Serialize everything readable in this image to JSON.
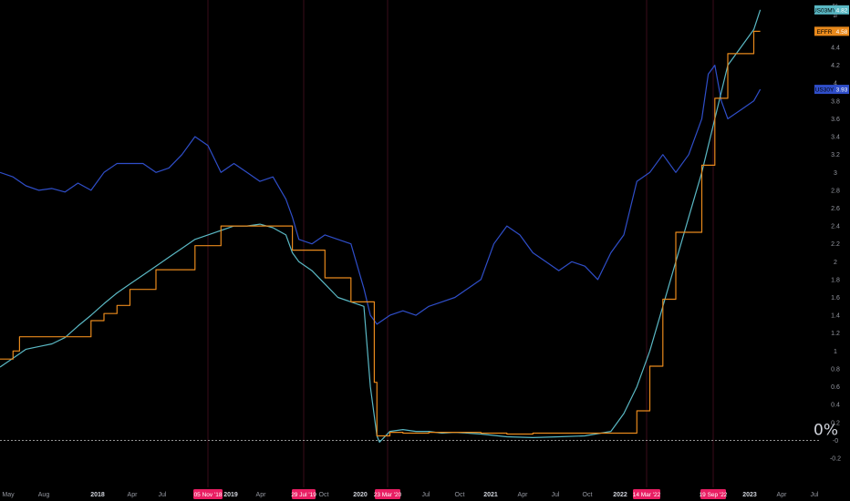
{
  "chart_data": {
    "type": "line",
    "ylabel": "%",
    "ylim": [
      -0.2,
      4.8
    ],
    "y_ticks": [
      "4.4",
      "4.2",
      "4",
      "3.8",
      "3.6",
      "3.4",
      "3.2",
      "3",
      "2.8",
      "2.6",
      "2.4",
      "2.2",
      "2",
      "1.8",
      "1.6",
      "1.4",
      "1.2",
      "1",
      "0.8",
      "0.6",
      "0.4",
      "0.2",
      "-0",
      "-0.2"
    ],
    "y_axis_top_symbol": "⇵",
    "x_ticks": [
      {
        "label": "May",
        "bold": false
      },
      {
        "label": "Aug",
        "bold": false
      },
      {
        "label": "2018",
        "bold": true
      },
      {
        "label": "Apr",
        "bold": false
      },
      {
        "label": "Jul",
        "bold": false
      },
      {
        "label": "O",
        "bold": false
      },
      {
        "label": "2019",
        "bold": true
      },
      {
        "label": "Apr",
        "bold": false
      },
      {
        "label": "Oct",
        "bold": false
      },
      {
        "label": "2020",
        "bold": true
      },
      {
        "label": "Jul",
        "bold": false
      },
      {
        "label": "Oct",
        "bold": false
      },
      {
        "label": "2021",
        "bold": true
      },
      {
        "label": "Apr",
        "bold": false
      },
      {
        "label": "Jul",
        "bold": false
      },
      {
        "label": "Oct",
        "bold": false
      },
      {
        "label": "2022",
        "bold": true
      },
      {
        "label": "Jul",
        "bold": false
      },
      {
        "label": "2023",
        "bold": true
      },
      {
        "label": "Apr",
        "bold": false
      },
      {
        "label": "Jul",
        "bold": false
      }
    ],
    "event_flags": [
      "05 Nov '18",
      "29 Jul '19",
      "23 Mar '20",
      "14 Mar '22",
      "19 Sep '22"
    ],
    "zero_label": "0%",
    "series": [
      {
        "name": "US30Y",
        "last": "3.93",
        "color": "#2f4ec9",
        "x": [
          2017.3,
          2017.4,
          2017.5,
          2017.6,
          2017.7,
          2017.8,
          2017.9,
          2018.0,
          2018.1,
          2018.2,
          2018.3,
          2018.4,
          2018.5,
          2018.6,
          2018.7,
          2018.8,
          2018.85,
          2018.9,
          2019.0,
          2019.1,
          2019.2,
          2019.3,
          2019.4,
          2019.5,
          2019.55,
          2019.6,
          2019.7,
          2019.8,
          2019.9,
          2020.0,
          2020.1,
          2020.15,
          2020.2,
          2020.25,
          2020.3,
          2020.4,
          2020.5,
          2020.6,
          2020.7,
          2020.8,
          2020.9,
          2021.0,
          2021.1,
          2021.2,
          2021.25,
          2021.3,
          2021.4,
          2021.5,
          2021.6,
          2021.7,
          2021.8,
          2021.9,
          2022.0,
          2022.1,
          2022.2,
          2022.3,
          2022.4,
          2022.5,
          2022.6,
          2022.7,
          2022.75,
          2022.8,
          2022.85,
          2022.9,
          2023.0,
          2023.1,
          2023.15
        ],
        "values": [
          3.0,
          2.95,
          2.85,
          2.8,
          2.82,
          2.78,
          2.88,
          2.8,
          3.0,
          3.1,
          3.1,
          3.1,
          3.0,
          3.05,
          3.2,
          3.4,
          3.35,
          3.3,
          3.0,
          3.1,
          3.0,
          2.9,
          2.95,
          2.7,
          2.5,
          2.25,
          2.2,
          2.3,
          2.25,
          2.2,
          1.7,
          1.4,
          1.3,
          1.35,
          1.4,
          1.45,
          1.4,
          1.5,
          1.55,
          1.6,
          1.7,
          1.8,
          2.2,
          2.4,
          2.35,
          2.3,
          2.1,
          2.0,
          1.9,
          2.0,
          1.95,
          1.8,
          2.1,
          2.3,
          2.9,
          3.0,
          3.2,
          3.0,
          3.2,
          3.6,
          4.1,
          4.2,
          3.8,
          3.6,
          3.7,
          3.8,
          3.93
        ]
      },
      {
        "name": "US03MY",
        "last": "4.82",
        "color": "#5ab8c4",
        "x": [
          2017.3,
          2017.4,
          2017.5,
          2017.6,
          2017.7,
          2017.8,
          2017.9,
          2018.0,
          2018.1,
          2018.2,
          2018.3,
          2018.4,
          2018.5,
          2018.6,
          2018.7,
          2018.8,
          2018.9,
          2019.0,
          2019.1,
          2019.2,
          2019.3,
          2019.4,
          2019.5,
          2019.55,
          2019.6,
          2019.7,
          2019.8,
          2019.9,
          2020.0,
          2020.1,
          2020.15,
          2020.2,
          2020.22,
          2020.3,
          2020.4,
          2020.5,
          2020.6,
          2020.7,
          2020.8,
          2020.9,
          2021.0,
          2021.2,
          2021.4,
          2021.6,
          2021.8,
          2022.0,
          2022.1,
          2022.2,
          2022.3,
          2022.4,
          2022.5,
          2022.6,
          2022.7,
          2022.8,
          2022.9,
          2023.0,
          2023.1,
          2023.15
        ],
        "values": [
          0.82,
          0.92,
          1.02,
          1.05,
          1.08,
          1.15,
          1.28,
          1.4,
          1.53,
          1.65,
          1.75,
          1.85,
          1.95,
          2.05,
          2.15,
          2.25,
          2.3,
          2.35,
          2.4,
          2.4,
          2.42,
          2.38,
          2.3,
          2.1,
          2.0,
          1.9,
          1.75,
          1.6,
          1.55,
          1.5,
          0.6,
          0.05,
          -0.02,
          0.1,
          0.12,
          0.1,
          0.1,
          0.08,
          0.09,
          0.08,
          0.07,
          0.04,
          0.03,
          0.04,
          0.05,
          0.1,
          0.3,
          0.6,
          1.0,
          1.5,
          2.0,
          2.5,
          3.0,
          3.6,
          4.2,
          4.4,
          4.6,
          4.82
        ]
      },
      {
        "name": "EFFR",
        "last": "4.58",
        "color": "#e8891c",
        "x": [
          2017.3,
          2017.4,
          2017.45,
          2017.6,
          2017.7,
          2017.9,
          2018.0,
          2018.1,
          2018.2,
          2018.3,
          2018.4,
          2018.5,
          2018.7,
          2018.8,
          2018.95,
          2019.0,
          2019.2,
          2019.4,
          2019.55,
          2019.7,
          2019.8,
          2020.0,
          2020.15,
          2020.18,
          2020.2,
          2020.3,
          2020.4,
          2020.6,
          2020.8,
          2021.0,
          2021.2,
          2021.4,
          2021.6,
          2021.8,
          2022.0,
          2022.2,
          2022.3,
          2022.4,
          2022.5,
          2022.6,
          2022.7,
          2022.8,
          2022.9,
          2023.0,
          2023.1,
          2023.15
        ],
        "values": [
          0.91,
          1.0,
          1.16,
          1.16,
          1.16,
          1.16,
          1.34,
          1.42,
          1.51,
          1.69,
          1.69,
          1.91,
          1.91,
          2.18,
          2.18,
          2.4,
          2.4,
          2.4,
          2.13,
          2.13,
          1.82,
          1.55,
          1.55,
          0.65,
          0.05,
          0.09,
          0.08,
          0.09,
          0.09,
          0.08,
          0.07,
          0.08,
          0.08,
          0.08,
          0.08,
          0.33,
          0.83,
          1.58,
          2.33,
          2.33,
          3.08,
          3.83,
          4.33,
          4.33,
          4.58,
          4.58
        ]
      }
    ]
  }
}
